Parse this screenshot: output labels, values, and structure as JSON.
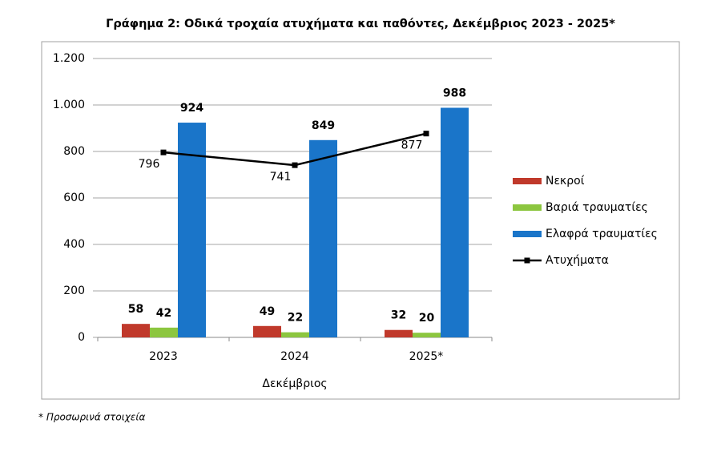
{
  "chart_data": {
    "type": "bar",
    "title": "Γράφημα 2: Οδικά τροχαία ατυχήματα και παθόντες, Δεκέμβριος 2023 - 2025*",
    "x_label": "Δεκέμβριος",
    "note": "* Προσωρινά στοιχεία",
    "categories": [
      "2023",
      "2024",
      "2025*"
    ],
    "series": [
      {
        "name": "Νεκροί",
        "color": "#c0392b",
        "values": [
          58,
          49,
          32
        ]
      },
      {
        "name": "Βαριά τραυματίες",
        "color": "#8cc63f",
        "values": [
          42,
          22,
          20
        ]
      },
      {
        "name": "Ελαφρά τραυματίες",
        "color": "#1a75c9",
        "values": [
          924,
          849,
          988
        ]
      },
      {
        "name": "Ατυχήματα",
        "color": "#000000",
        "type": "line",
        "values": [
          796,
          741,
          877
        ]
      }
    ],
    "ylim": [
      0,
      1200
    ],
    "yticks": [
      0,
      200,
      400,
      600,
      800,
      {
        "value": 1000,
        "label": "1.000"
      },
      {
        "value": 1200,
        "label": "1.200"
      }
    ],
    "grid": true,
    "legend": "right"
  }
}
